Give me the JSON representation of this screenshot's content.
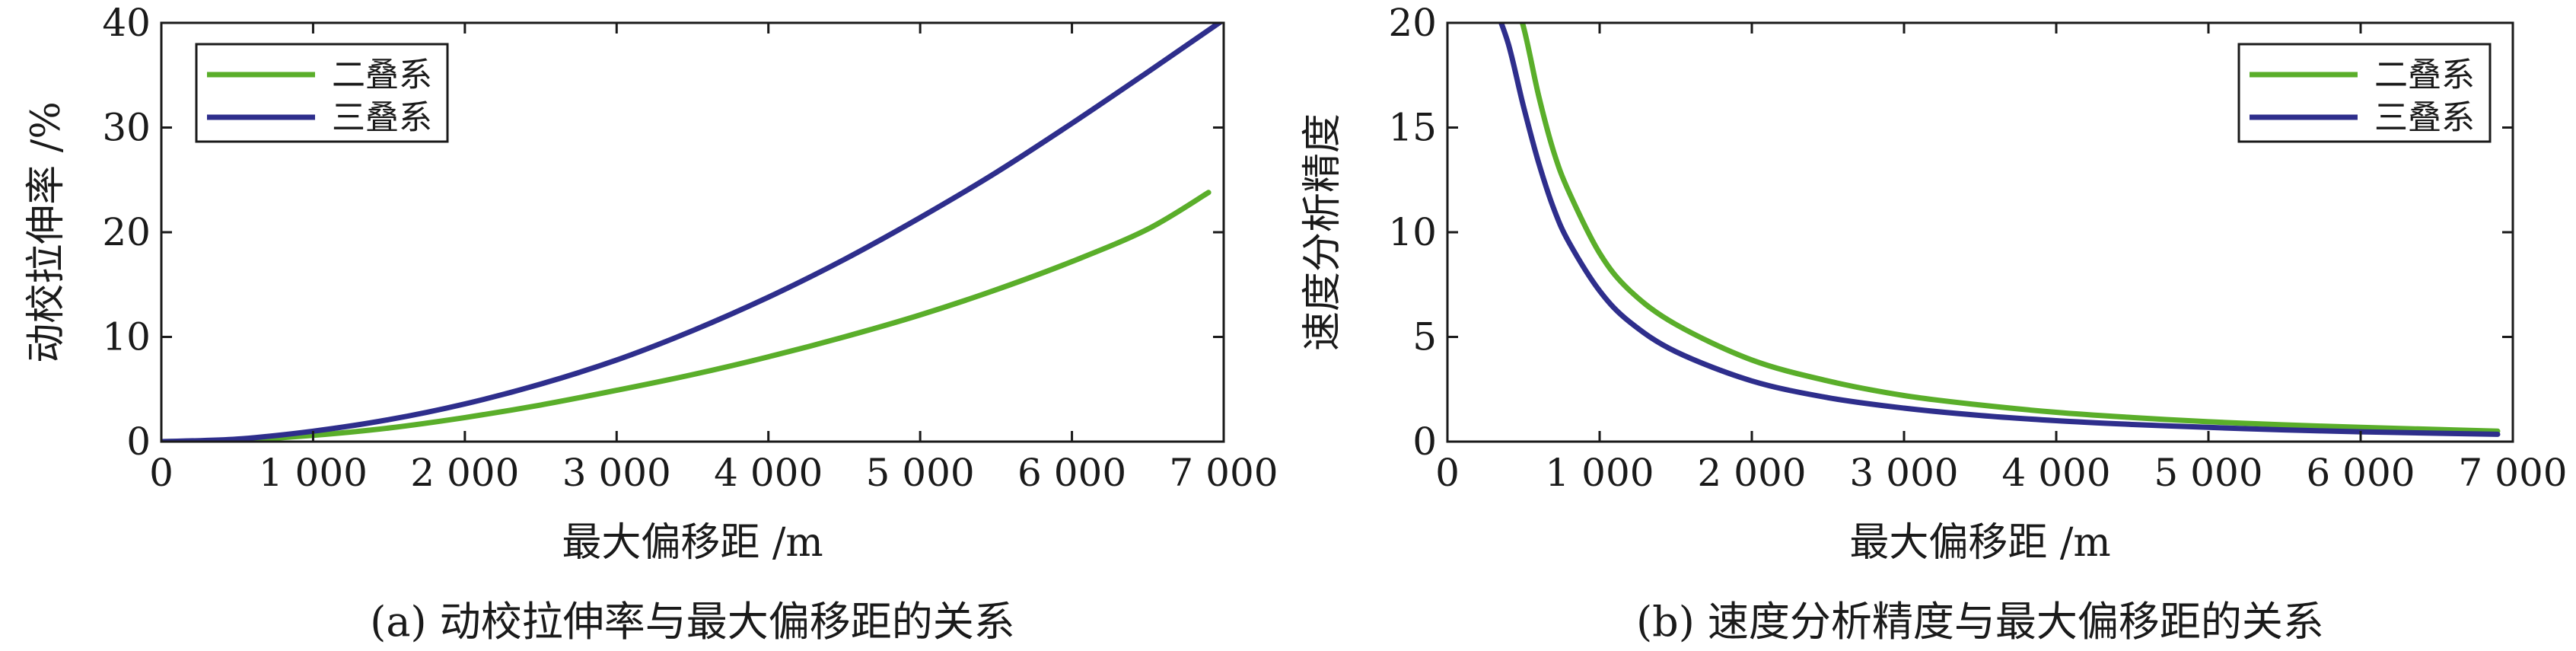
{
  "colors": {
    "series_two_layer": "#5aae2a",
    "series_three_layer": "#2e2e8c",
    "axis": "#1a1a1a"
  },
  "chart_data": [
    {
      "type": "line",
      "caption": "(a) 动校拉伸率与最大偏移距的关系",
      "xlabel": "最大偏移距 /m",
      "ylabel": "动校拉伸率 /%",
      "xlim": [
        0,
        7000
      ],
      "ylim": [
        0,
        40
      ],
      "xticks": [
        0,
        1000,
        2000,
        3000,
        4000,
        5000,
        6000,
        7000
      ],
      "xtick_labels": [
        "0",
        "1 000",
        "2 000",
        "3 000",
        "4 000",
        "5 000",
        "6 000",
        "7 000"
      ],
      "yticks": [
        0,
        10,
        20,
        30,
        40
      ],
      "ytick_labels": [
        "0",
        "10",
        "20",
        "30",
        "40"
      ],
      "legend_position": "top-left",
      "series": [
        {
          "name": "二叠系",
          "color_key": "series_two_layer",
          "x": [
            0,
            500,
            1000,
            1500,
            2000,
            2500,
            3000,
            3500,
            4000,
            4500,
            5000,
            5500,
            6000,
            6500,
            6900
          ],
          "y": [
            0,
            0.15,
            0.6,
            1.3,
            2.3,
            3.5,
            4.9,
            6.4,
            8.1,
            10.0,
            12.1,
            14.5,
            17.2,
            20.3,
            23.8
          ]
        },
        {
          "name": "三叠系",
          "color_key": "series_three_layer",
          "x": [
            0,
            500,
            1000,
            1500,
            2000,
            2500,
            3000,
            3500,
            4000,
            4500,
            5000,
            5500,
            6000,
            6500,
            7000
          ],
          "y": [
            0,
            0.25,
            1.0,
            2.1,
            3.6,
            5.5,
            7.8,
            10.6,
            13.8,
            17.4,
            21.4,
            25.7,
            30.4,
            35.3,
            40.3
          ]
        }
      ]
    },
    {
      "type": "line",
      "caption": "(b) 速度分析精度与最大偏移距的关系",
      "xlabel": "最大偏移距 /m",
      "ylabel": "速度分析精度",
      "xlim": [
        0,
        7000
      ],
      "ylim": [
        0,
        20
      ],
      "xticks": [
        0,
        1000,
        2000,
        3000,
        4000,
        5000,
        6000,
        7000
      ],
      "xtick_labels": [
        "0",
        "1 000",
        "2 000",
        "3 000",
        "4 000",
        "5 000",
        "6 000",
        "7 000"
      ],
      "yticks": [
        0,
        5,
        10,
        15,
        20
      ],
      "ytick_labels": [
        "0",
        "5",
        "10",
        "15",
        "20"
      ],
      "legend_position": "top-right",
      "series": [
        {
          "name": "二叠系",
          "color_key": "series_two_layer",
          "x": [
            400,
            500,
            600,
            700,
            800,
            1000,
            1200,
            1500,
            2000,
            2500,
            3000,
            3500,
            4000,
            4500,
            5000,
            5500,
            6000,
            6500,
            6900
          ],
          "y": [
            22,
            19.8,
            16.5,
            13.8,
            11.9,
            9.0,
            7.2,
            5.6,
            3.9,
            2.9,
            2.2,
            1.75,
            1.4,
            1.15,
            0.95,
            0.8,
            0.68,
            0.58,
            0.5
          ]
        },
        {
          "name": "三叠系",
          "color_key": "series_three_layer",
          "x": [
            300,
            400,
            500,
            600,
            700,
            800,
            1000,
            1200,
            1500,
            2000,
            2500,
            3000,
            3500,
            4000,
            4500,
            5000,
            5500,
            6000,
            6500,
            6900
          ],
          "y": [
            21,
            19.0,
            16.0,
            13.3,
            11.1,
            9.5,
            7.2,
            5.7,
            4.3,
            2.9,
            2.1,
            1.6,
            1.25,
            1.0,
            0.82,
            0.68,
            0.56,
            0.47,
            0.4,
            0.35
          ]
        }
      ]
    }
  ]
}
